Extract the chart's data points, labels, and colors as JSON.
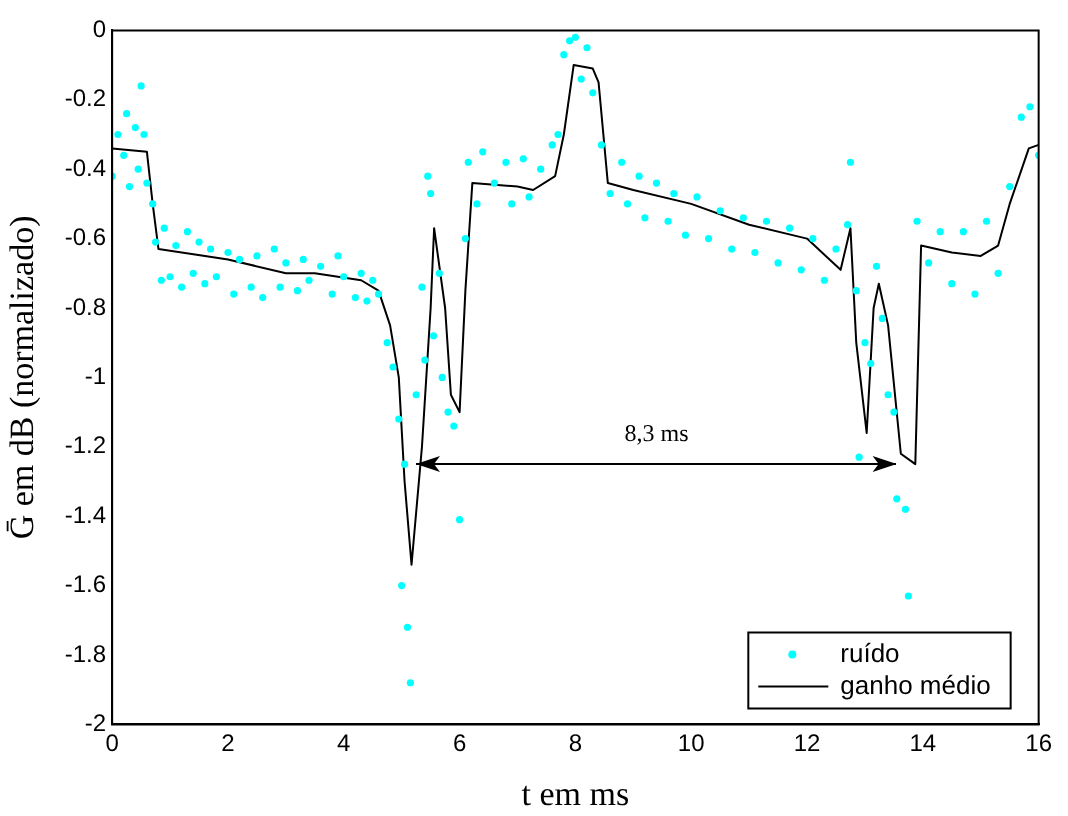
{
  "chart_data": {
    "type": "line",
    "xlabel": "t em ms",
    "ylabel": "Ḡ em dB (normalizado)",
    "xlim": [
      0,
      16
    ],
    "xticks": [
      0,
      2,
      4,
      6,
      8,
      10,
      12,
      14,
      16
    ],
    "ylim": [
      -2,
      0
    ],
    "yticks": [
      -2,
      -1.8,
      -1.6,
      -1.4,
      -1.2,
      -1,
      -0.8,
      -0.6,
      -0.4,
      -0.2,
      0
    ],
    "grid": false,
    "legend": "bottom right",
    "annotations": [
      "8,3 ms"
    ],
    "series": [
      {
        "name": "ruído",
        "type": "scatter",
        "marker": "circle",
        "color": "#00ffff",
        "x": [
          0.0,
          0.1,
          0.2,
          0.25,
          0.3,
          0.4,
          0.45,
          0.5,
          0.55,
          0.6,
          0.7,
          0.75,
          0.85,
          0.9,
          1.0,
          1.1,
          1.2,
          1.3,
          1.4,
          1.5,
          1.6,
          1.7,
          1.8,
          2.0,
          2.1,
          2.2,
          2.4,
          2.5,
          2.6,
          2.8,
          2.9,
          3.0,
          3.2,
          3.3,
          3.4,
          3.6,
          3.8,
          3.9,
          4.0,
          4.2,
          4.3,
          4.4,
          4.5,
          4.6,
          4.75,
          4.85,
          4.95,
          5.0,
          5.05,
          5.1,
          5.15,
          5.25,
          5.35,
          5.4,
          5.45,
          5.5,
          5.55,
          5.65,
          5.7,
          5.8,
          5.9,
          6.0,
          6.1,
          6.15,
          6.3,
          6.4,
          6.6,
          6.8,
          6.9,
          7.1,
          7.2,
          7.4,
          7.6,
          7.7,
          7.8,
          7.9,
          8.0,
          8.1,
          8.2,
          8.3,
          8.45,
          8.6,
          8.8,
          8.9,
          9.1,
          9.2,
          9.4,
          9.6,
          9.7,
          9.9,
          10.1,
          10.3,
          10.5,
          10.7,
          10.9,
          11.1,
          11.3,
          11.5,
          11.7,
          11.9,
          12.1,
          12.3,
          12.5,
          12.7,
          12.75,
          12.85,
          12.9,
          13.0,
          13.1,
          13.2,
          13.3,
          13.4,
          13.5,
          13.55,
          13.7,
          13.75,
          13.9,
          14.1,
          14.3,
          14.5,
          14.7,
          14.9,
          15.1,
          15.3,
          15.5,
          15.7,
          15.85,
          16.0
        ],
        "values": [
          -0.42,
          -0.3,
          -0.36,
          -0.24,
          -0.45,
          -0.28,
          -0.4,
          -0.16,
          -0.3,
          -0.44,
          -0.5,
          -0.61,
          -0.72,
          -0.57,
          -0.71,
          -0.62,
          -0.74,
          -0.58,
          -0.7,
          -0.61,
          -0.73,
          -0.63,
          -0.71,
          -0.64,
          -0.76,
          -0.66,
          -0.74,
          -0.65,
          -0.77,
          -0.63,
          -0.74,
          -0.67,
          -0.75,
          -0.66,
          -0.72,
          -0.68,
          -0.76,
          -0.65,
          -0.71,
          -0.77,
          -0.7,
          -0.78,
          -0.72,
          -0.76,
          -0.9,
          -0.97,
          -1.12,
          -1.6,
          -1.25,
          -1.72,
          -1.88,
          -1.05,
          -0.74,
          -0.95,
          -0.42,
          -0.47,
          -0.88,
          -0.7,
          -1.0,
          -1.1,
          -1.14,
          -1.41,
          -0.6,
          -0.38,
          -0.5,
          -0.35,
          -0.44,
          -0.38,
          -0.5,
          -0.37,
          -0.48,
          -0.4,
          -0.33,
          -0.3,
          -0.07,
          -0.03,
          -0.02,
          -0.14,
          -0.05,
          -0.18,
          -0.33,
          -0.47,
          -0.38,
          -0.5,
          -0.42,
          -0.54,
          -0.44,
          -0.55,
          -0.47,
          -0.59,
          -0.48,
          -0.6,
          -0.52,
          -0.63,
          -0.54,
          -0.64,
          -0.55,
          -0.67,
          -0.57,
          -0.69,
          -0.6,
          -0.72,
          -0.63,
          -0.56,
          -0.38,
          -0.75,
          -1.23,
          -0.9,
          -0.96,
          -0.68,
          -0.83,
          -1.05,
          -1.1,
          -1.35,
          -1.38,
          -1.63,
          -0.55,
          -0.67,
          -0.58,
          -0.73,
          -0.58,
          -0.76,
          -0.55,
          -0.7,
          -0.45,
          -0.25,
          -0.22,
          -0.36
        ]
      },
      {
        "name": "ganho médio",
        "type": "line",
        "marker": "none",
        "line_style": "solid",
        "color": "#000000",
        "x": [
          0,
          0.6,
          0.7,
          0.8,
          1.2,
          2.0,
          3.0,
          3.5,
          4.3,
          4.6,
          4.8,
          4.95,
          5.05,
          5.17,
          5.35,
          5.5,
          5.56,
          5.75,
          5.85,
          6.0,
          6.1,
          6.22,
          7.0,
          7.27,
          7.65,
          7.8,
          7.97,
          8.3,
          8.4,
          8.56,
          9.0,
          10,
          11,
          12,
          12.58,
          12.75,
          12.85,
          13.03,
          13.15,
          13.24,
          13.4,
          13.62,
          13.87,
          13.97,
          14.5,
          15,
          15.3,
          15.5,
          15.83,
          16
        ],
        "values": [
          -0.34,
          -0.35,
          -0.5,
          -0.63,
          -0.64,
          -0.66,
          -0.7,
          -0.7,
          -0.72,
          -0.75,
          -0.85,
          -1.0,
          -1.3,
          -1.54,
          -1.2,
          -0.8,
          -0.57,
          -0.8,
          -1.05,
          -1.1,
          -0.75,
          -0.44,
          -0.45,
          -0.46,
          -0.42,
          -0.3,
          -0.1,
          -0.11,
          -0.15,
          -0.44,
          -0.46,
          -0.5,
          -0.56,
          -0.6,
          -0.69,
          -0.57,
          -0.9,
          -1.16,
          -0.8,
          -0.73,
          -0.85,
          -1.22,
          -1.25,
          -0.62,
          -0.64,
          -0.65,
          -0.62,
          -0.5,
          -0.34,
          -0.33
        ]
      }
    ]
  }
}
